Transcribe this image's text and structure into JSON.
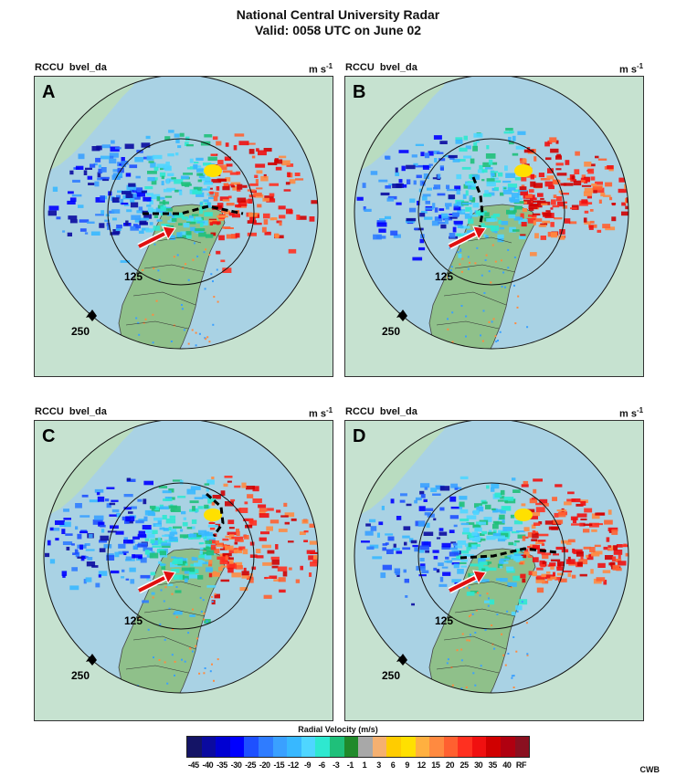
{
  "title_line1": "National Central University Radar",
  "title_line2": "Valid: 0058 UTC on June 02",
  "panels": [
    {
      "id": "A",
      "station": "RCCU",
      "field": "bvel_da",
      "unit": "m s",
      "unit_exp": "-1",
      "range_inner": "125",
      "range_outer": "250"
    },
    {
      "id": "B",
      "station": "RCCU",
      "field": "bvel_da",
      "unit": "m s",
      "unit_exp": "-1",
      "range_inner": "125",
      "range_outer": "250"
    },
    {
      "id": "C",
      "station": "RCCU",
      "field": "bvel_da",
      "unit": "m s",
      "unit_exp": "-1",
      "range_inner": "125",
      "range_outer": "250"
    },
    {
      "id": "D",
      "station": "RCCU",
      "field": "bvel_da",
      "unit": "m s",
      "unit_exp": "-1",
      "range_inner": "125",
      "range_outer": "250"
    }
  ],
  "colorbar": {
    "title": "Radial Velocity (m/s)",
    "labels": [
      "-45",
      "-40",
      "-35",
      "-30",
      "-25",
      "-20",
      "-15",
      "-12",
      "-9",
      "-6",
      "-3",
      "-1",
      "1",
      "3",
      "6",
      "9",
      "12",
      "15",
      "20",
      "25",
      "30",
      "35",
      "40",
      "RF"
    ],
    "colors": [
      "#141466",
      "#0a0aa0",
      "#0000d2",
      "#0000ff",
      "#1e50ff",
      "#2f7cff",
      "#3aa0ff",
      "#38b8ff",
      "#4fd6ff",
      "#2ee8d0",
      "#1fc07a",
      "#208a2a",
      "#a8a8a8",
      "#f5b070",
      "#ffcc00",
      "#ffe000",
      "#ffb040",
      "#ff8a40",
      "#ff6030",
      "#ff3020",
      "#f01010",
      "#d00000",
      "#b00010",
      "#8a1020"
    ]
  },
  "credit": "CWB"
}
